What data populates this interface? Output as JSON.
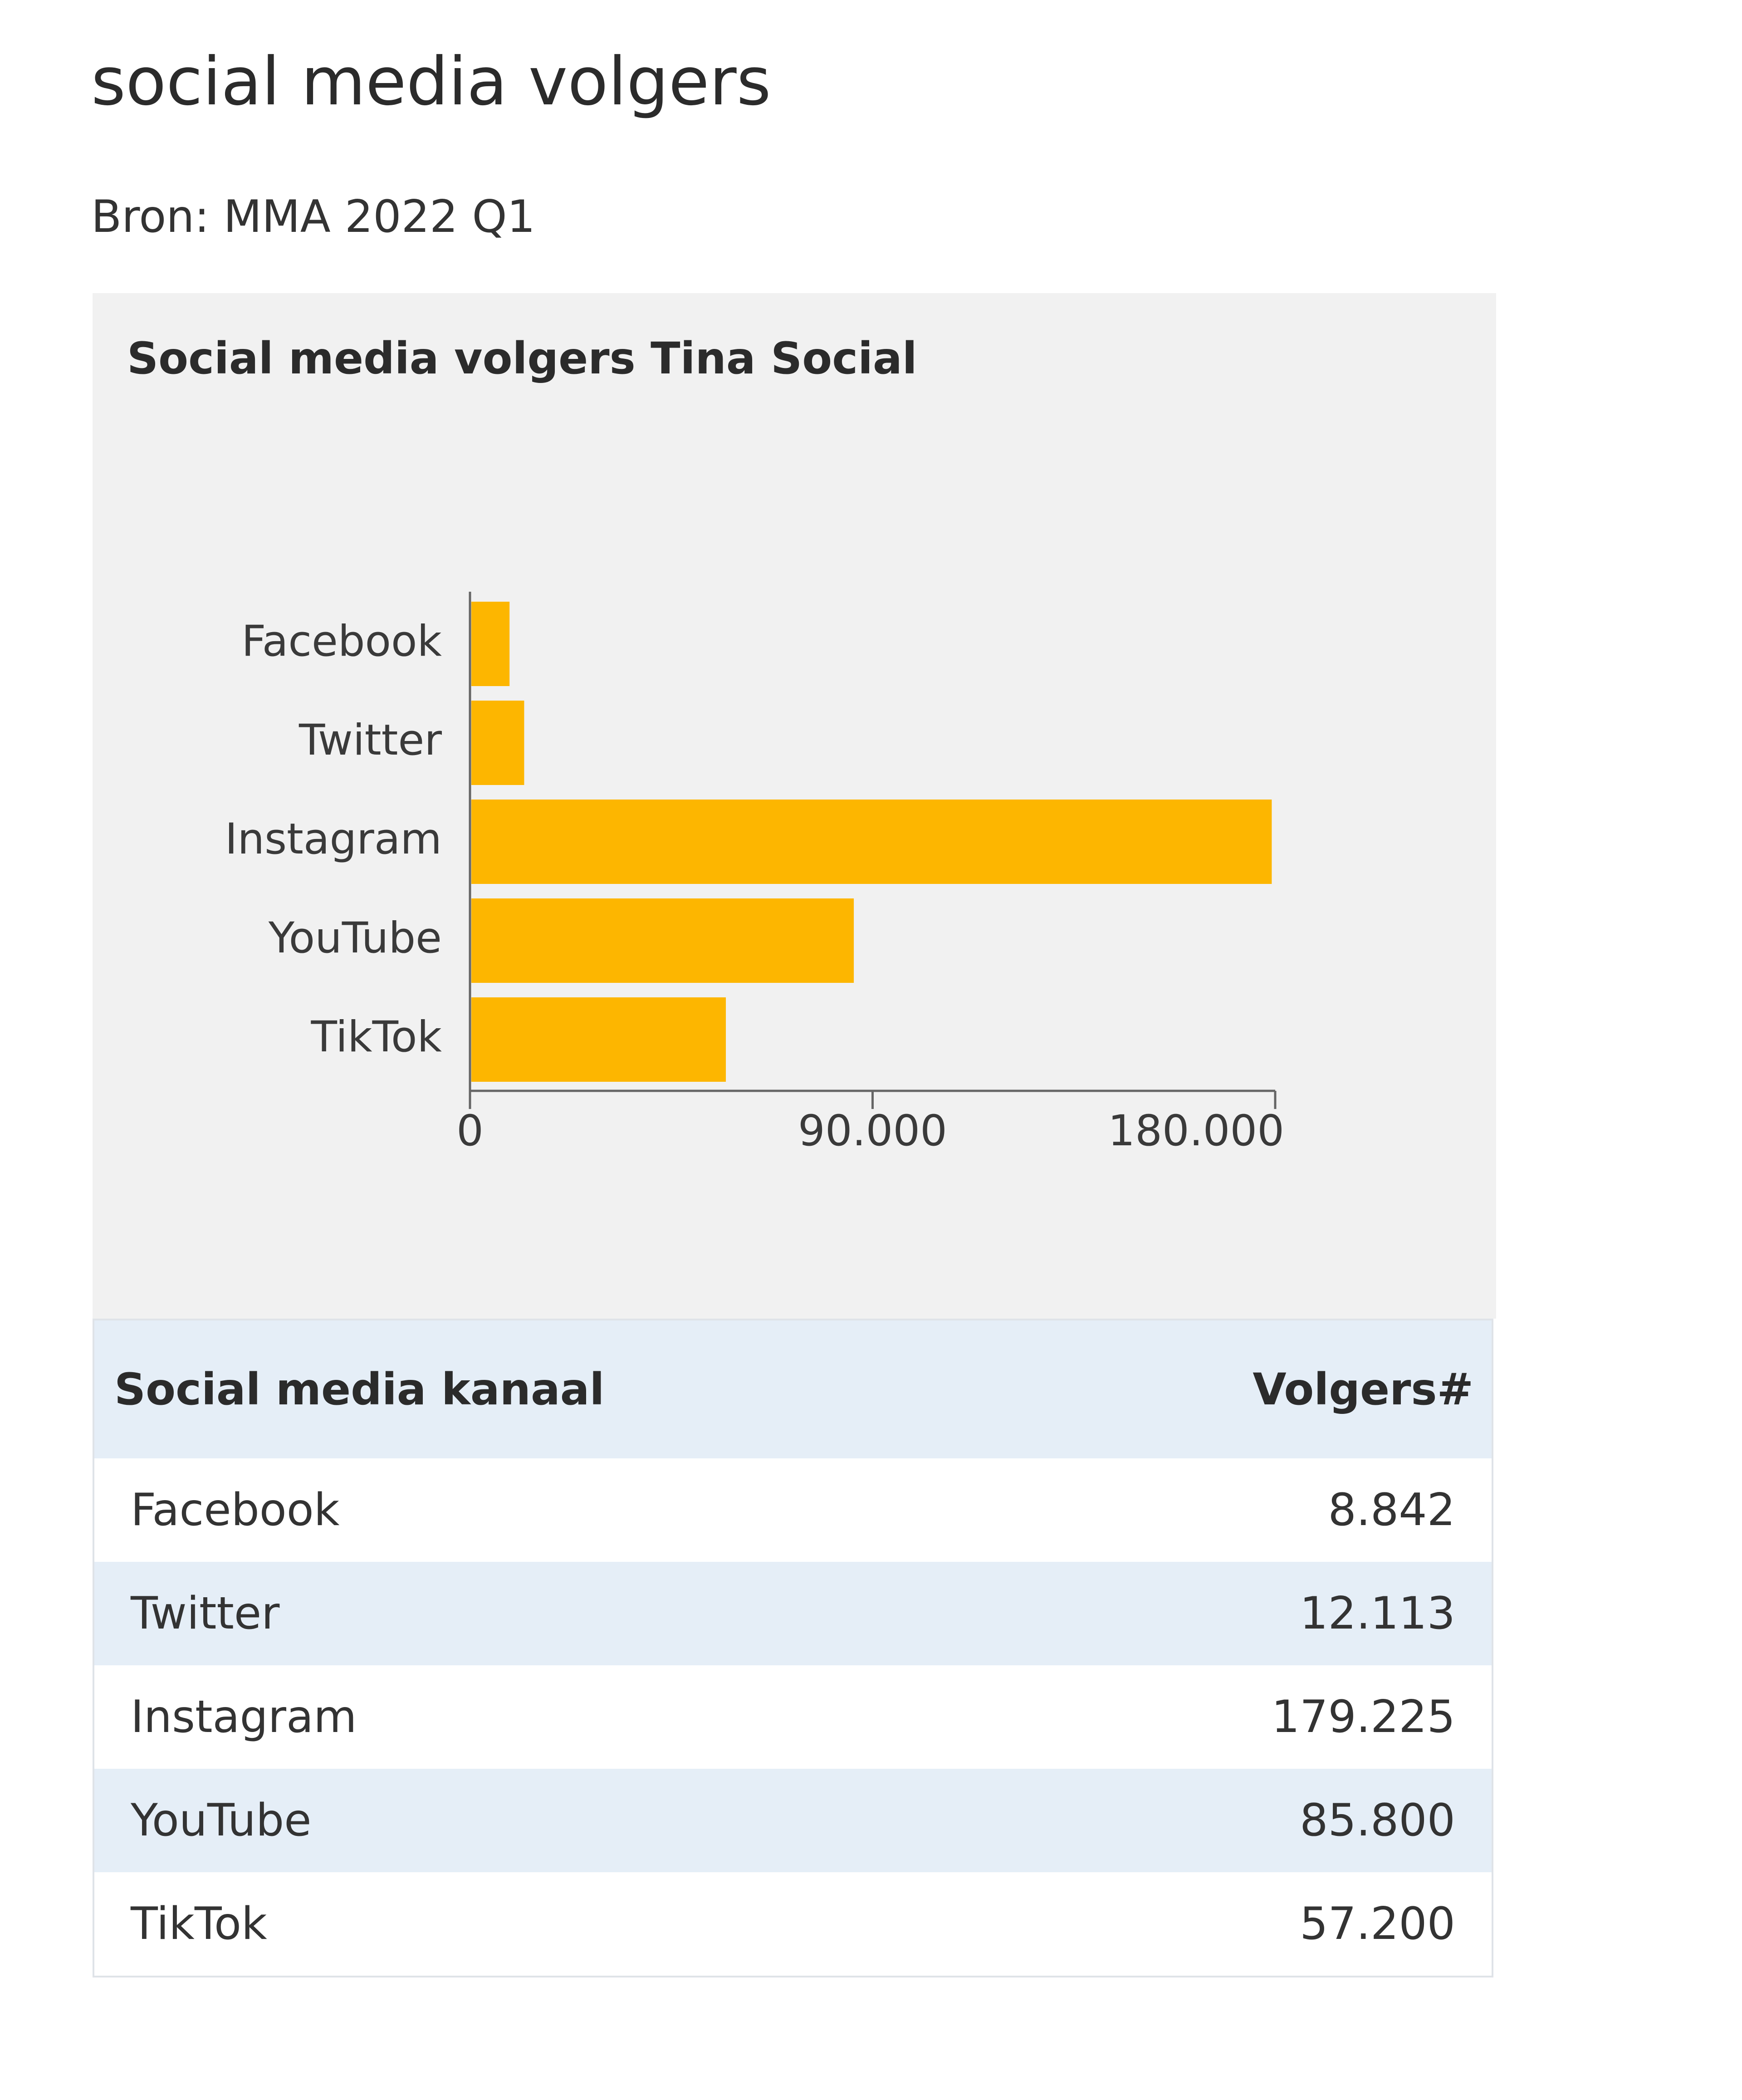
{
  "page": {
    "title": "social media volgers",
    "source": "Bron: MMA 2022 Q1"
  },
  "chart_data": {
    "type": "bar",
    "orientation": "horizontal",
    "title": "Social media volgers Tina Social",
    "categories": [
      "Facebook",
      "Twitter",
      "Instagram",
      "YouTube",
      "TikTok"
    ],
    "values": [
      8842,
      12113,
      179225,
      85800,
      57200
    ],
    "xlim": [
      0,
      180000
    ],
    "xticks": [
      0,
      90000,
      180000
    ],
    "xtick_labels": [
      "0",
      "90.000",
      "180.000"
    ],
    "xlabel": "",
    "ylabel": "",
    "bar_color": "#fdb600",
    "grid": false,
    "legend": "none"
  },
  "table": {
    "headers": [
      "Social media kanaal",
      "Volgers#"
    ],
    "rows": [
      [
        "Facebook",
        "8.842"
      ],
      [
        "Twitter",
        "12.113"
      ],
      [
        "Instagram",
        "179.225"
      ],
      [
        "YouTube",
        "85.800"
      ],
      [
        "TikTok",
        "57.200"
      ]
    ]
  },
  "colors": {
    "panel_background": "#f1f1f1",
    "table_header_background": "#e5eef7",
    "table_stripe": "#e5eef7",
    "bar": "#fdb600",
    "axis": "#666666"
  }
}
